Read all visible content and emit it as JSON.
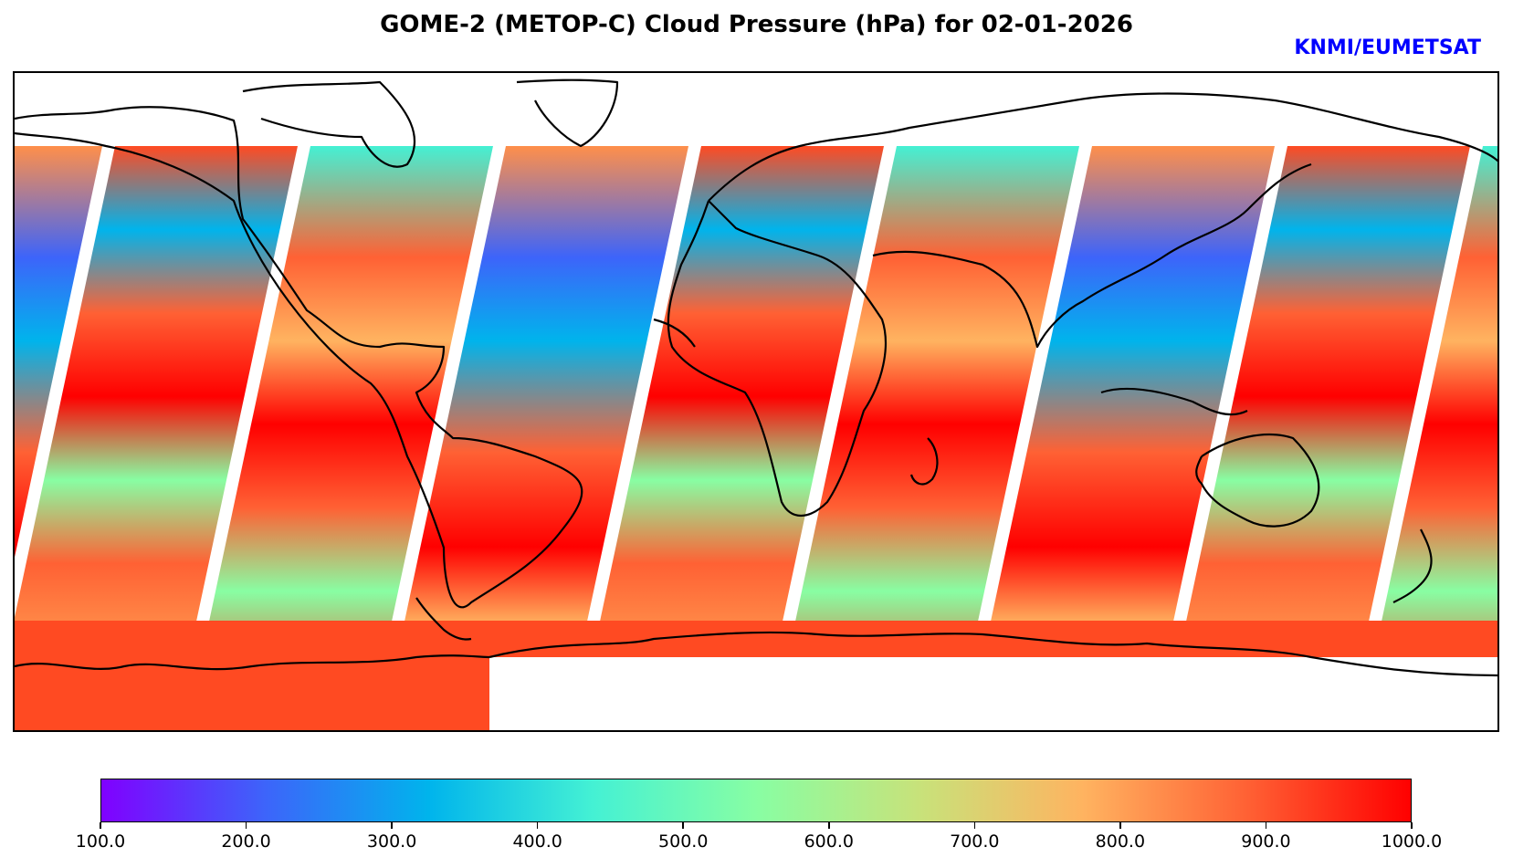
{
  "header": {
    "title": "GOME-2 (METOP-C) Cloud Pressure (hPa) for 02-01-2026",
    "credit": "KNMI/EUMETSAT"
  },
  "map": {
    "variable": "Cloud Pressure",
    "units": "hPa",
    "projection": "Plate Carree (global)",
    "no_data_color": "#ffffff",
    "coastline_color": "#000000"
  },
  "colorbar": {
    "colormap": "rainbow",
    "min": 100.0,
    "max": 1000.0,
    "stops": [
      "#8000ff",
      "#3d64fa",
      "#00b4ec",
      "#44f1d4",
      "#88fea3",
      "#c8e27a",
      "#ffb360",
      "#ff6134",
      "#ff0000"
    ],
    "ticks": [
      "100.0",
      "200.0",
      "300.0",
      "400.0",
      "500.0",
      "600.0",
      "700.0",
      "800.0",
      "900.0",
      "1000.0"
    ]
  }
}
